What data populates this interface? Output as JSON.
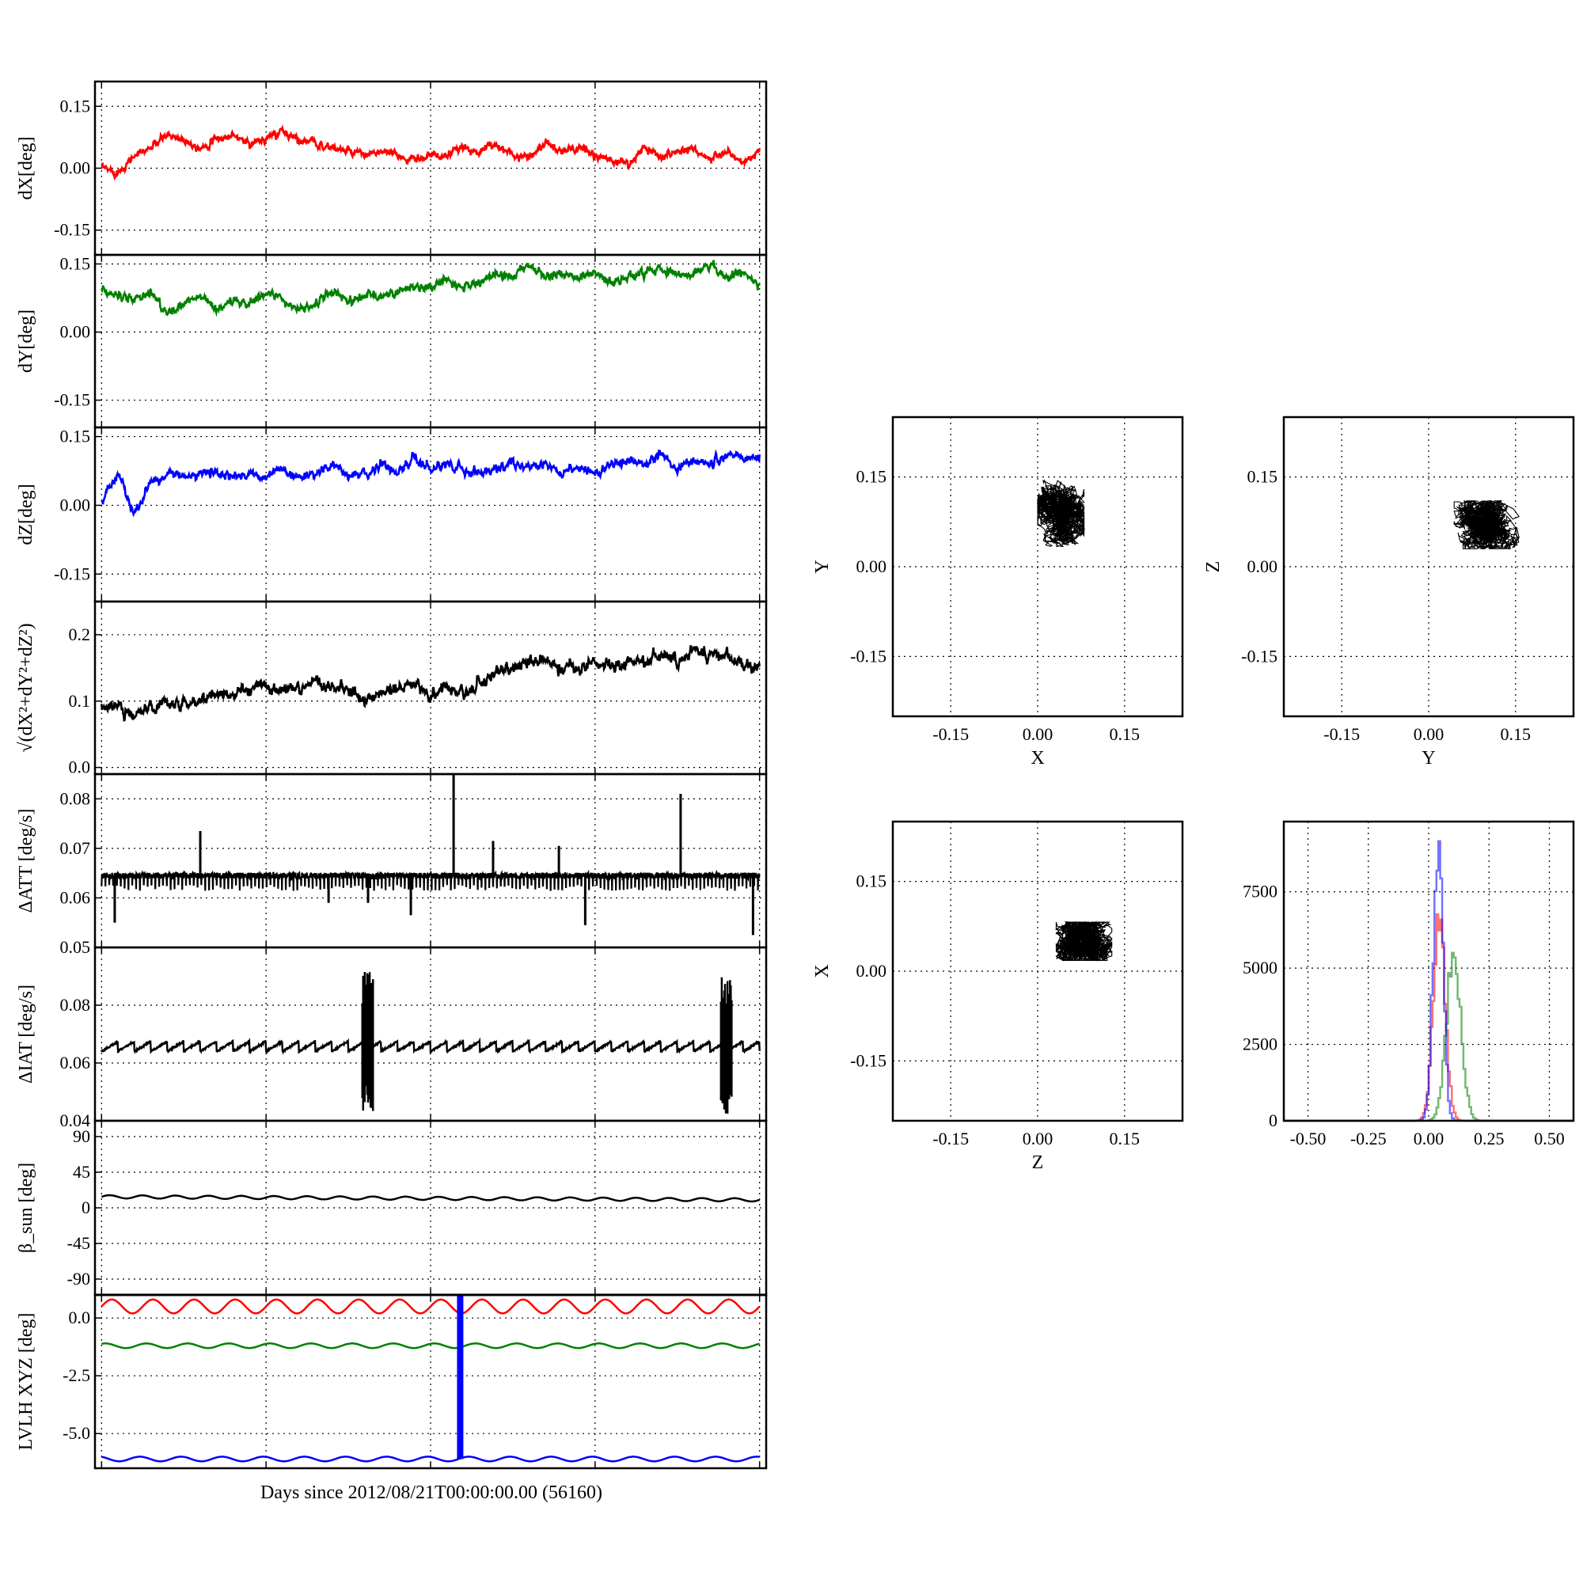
{
  "figure": {
    "xlabel": "Days since 2012/08/21T00:00:00.00 (56160)"
  },
  "chart_data": [
    {
      "id": "dX",
      "type": "line",
      "ylabel": "dX[deg]",
      "ylim": [
        -0.21,
        0.21
      ],
      "yticks": [
        "0.15",
        "0.00",
        "-0.15"
      ],
      "ytick_values": [
        0.15,
        0,
        -0.15
      ],
      "color": "#ff0000",
      "series": [
        {
          "x": [
            0,
            0.5,
            1,
            1.5,
            2,
            2.5,
            3,
            3.5,
            4,
            4.5,
            5,
            5.5,
            6,
            6.5,
            7,
            7.5,
            8,
            8.5,
            9,
            9.5,
            10,
            10.5,
            11,
            11.5,
            12,
            12.5,
            13,
            13.5,
            14,
            14.5,
            15,
            15.5,
            16,
            16.5,
            17,
            17.5,
            18,
            18.5,
            19,
            19.5,
            20
          ],
          "y": [
            0.0,
            -0.01,
            0.03,
            0.05,
            0.08,
            0.07,
            0.05,
            0.07,
            0.08,
            0.06,
            0.07,
            0.09,
            0.07,
            0.06,
            0.05,
            0.04,
            0.03,
            0.04,
            0.03,
            0.02,
            0.03,
            0.03,
            0.05,
            0.04,
            0.06,
            0.03,
            0.03,
            0.06,
            0.04,
            0.05,
            0.03,
            0.02,
            0.01,
            0.05,
            0.03,
            0.04,
            0.05,
            0.02,
            0.04,
            0.01,
            0.04
          ]
        }
      ]
    },
    {
      "id": "dY",
      "type": "line",
      "ylabel": "dY[deg]",
      "ylim": [
        -0.21,
        0.17
      ],
      "yticks": [
        "0.15",
        "0.00",
        "-0.15"
      ],
      "ytick_values": [
        0.15,
        0,
        -0.15
      ],
      "color": "#008000",
      "series": [
        {
          "x": [
            0,
            0.5,
            1,
            1.5,
            2,
            2.5,
            3,
            3.5,
            4,
            4.5,
            5,
            5.5,
            6,
            6.5,
            7,
            7.5,
            8,
            8.5,
            9,
            9.5,
            10,
            10.5,
            11,
            11.5,
            12,
            12.5,
            13,
            13.5,
            14,
            14.5,
            15,
            15.5,
            16,
            16.5,
            17,
            17.5,
            18,
            18.5,
            19,
            19.5,
            20
          ],
          "y": [
            0.09,
            0.08,
            0.07,
            0.09,
            0.04,
            0.06,
            0.08,
            0.05,
            0.07,
            0.06,
            0.09,
            0.07,
            0.05,
            0.06,
            0.09,
            0.07,
            0.08,
            0.08,
            0.09,
            0.1,
            0.1,
            0.11,
            0.1,
            0.11,
            0.13,
            0.12,
            0.15,
            0.12,
            0.13,
            0.12,
            0.13,
            0.11,
            0.12,
            0.13,
            0.14,
            0.13,
            0.13,
            0.15,
            0.12,
            0.13,
            0.1
          ]
        }
      ]
    },
    {
      "id": "dZ",
      "type": "line",
      "ylabel": "dZ[deg]",
      "ylim": [
        -0.21,
        0.17
      ],
      "yticks": [
        "0.15",
        "0.00",
        "-0.15"
      ],
      "ytick_values": [
        0.15,
        0,
        -0.15
      ],
      "color": "#0000ff",
      "series": [
        {
          "x": [
            0,
            0.5,
            1,
            1.5,
            2,
            2.5,
            3,
            3.5,
            4,
            4.5,
            5,
            5.5,
            6,
            6.5,
            7,
            7.5,
            8,
            8.5,
            9,
            9.5,
            10,
            10.5,
            11,
            11.5,
            12,
            12.5,
            13,
            13.5,
            14,
            14.5,
            15,
            15.5,
            16,
            16.5,
            17,
            17.5,
            18,
            18.5,
            19,
            19.5,
            20
          ],
          "y": [
            0.01,
            0.07,
            -0.02,
            0.05,
            0.07,
            0.06,
            0.07,
            0.07,
            0.06,
            0.07,
            0.06,
            0.08,
            0.06,
            0.07,
            0.09,
            0.06,
            0.07,
            0.09,
            0.07,
            0.1,
            0.08,
            0.09,
            0.08,
            0.07,
            0.08,
            0.09,
            0.08,
            0.09,
            0.07,
            0.08,
            0.07,
            0.09,
            0.1,
            0.09,
            0.11,
            0.08,
            0.1,
            0.09,
            0.11,
            0.1,
            0.11
          ]
        }
      ]
    },
    {
      "id": "dR",
      "type": "line",
      "ylabel": "√(dX²+dY²+dZ²)",
      "ylim": [
        -0.01,
        0.25
      ],
      "yticks": [
        "0.2",
        "0.1",
        "0.0"
      ],
      "ytick_values": [
        0.2,
        0.1,
        0.0
      ],
      "color": "#000000",
      "series": [
        {
          "x": [
            0,
            0.5,
            1,
            1.5,
            2,
            2.5,
            3,
            3.5,
            4,
            4.5,
            5,
            5.5,
            6,
            6.5,
            7,
            7.5,
            8,
            8.5,
            9,
            9.5,
            10,
            10.5,
            11,
            11.5,
            12,
            12.5,
            13,
            13.5,
            14,
            14.5,
            15,
            15.5,
            16,
            16.5,
            17,
            17.5,
            18,
            18.5,
            19,
            19.5,
            20
          ],
          "y": [
            0.09,
            0.09,
            0.08,
            0.09,
            0.1,
            0.1,
            0.1,
            0.11,
            0.11,
            0.12,
            0.12,
            0.12,
            0.12,
            0.13,
            0.12,
            0.12,
            0.1,
            0.11,
            0.12,
            0.13,
            0.11,
            0.12,
            0.11,
            0.13,
            0.14,
            0.15,
            0.16,
            0.16,
            0.15,
            0.15,
            0.16,
            0.15,
            0.16,
            0.16,
            0.17,
            0.16,
            0.18,
            0.17,
            0.17,
            0.15,
            0.15
          ]
        }
      ]
    },
    {
      "id": "dATT",
      "type": "line",
      "ylabel": "ΔATT [deg/s]",
      "ylim": [
        0.05,
        0.085
      ],
      "yticks": [
        "0.08",
        "0.07",
        "0.06",
        "0.05"
      ],
      "ytick_values": [
        0.08,
        0.07,
        0.06,
        0.05
      ],
      "color": "#000000",
      "baseline": 0.0645,
      "spikes": [
        {
          "x": 0.4,
          "y": 0.055
        },
        {
          "x": 3.0,
          "y": 0.0735
        },
        {
          "x": 6.9,
          "y": 0.059
        },
        {
          "x": 8.1,
          "y": 0.059
        },
        {
          "x": 9.4,
          "y": 0.0565
        },
        {
          "x": 10.7,
          "y": 0.085
        },
        {
          "x": 11.9,
          "y": 0.0715
        },
        {
          "x": 13.9,
          "y": 0.0705
        },
        {
          "x": 14.7,
          "y": 0.0545
        },
        {
          "x": 17.6,
          "y": 0.081
        },
        {
          "x": 19.8,
          "y": 0.0525
        }
      ]
    },
    {
      "id": "dIAT",
      "type": "line",
      "ylabel": "ΔIAT [deg/s]",
      "ylim": [
        0.04,
        0.1
      ],
      "yticks": [
        "0.08",
        "0.06",
        "0.04"
      ],
      "ytick_values": [
        0.08,
        0.06,
        0.04
      ],
      "color": "#000000",
      "baseline": 0.064,
      "bursts": [
        {
          "x": 8.1,
          "ymin": 0.043,
          "ymax": 0.092
        },
        {
          "x": 19.0,
          "ymin": 0.042,
          "ymax": 0.091
        }
      ]
    },
    {
      "id": "beta",
      "type": "line",
      "ylabel": "β_sun [deg]",
      "ylim": [
        -110,
        110
      ],
      "yticks": [
        "90",
        "45",
        "0",
        "-45",
        "-90"
      ],
      "ytick_values": [
        90,
        45,
        0,
        -45,
        -90
      ],
      "color": "#000000",
      "series": [
        {
          "x": [
            0,
            5,
            10,
            15,
            20
          ],
          "y": [
            14,
            13,
            12,
            11,
            10
          ]
        }
      ]
    },
    {
      "id": "lvlh",
      "type": "line",
      "ylabel": "LVLH XYZ [deg]",
      "ylim": [
        -6.5,
        1.0
      ],
      "yticks": [
        "0.0",
        "-2.5",
        "-5.0"
      ],
      "ytick_values": [
        0.0,
        -2.5,
        -5.0
      ],
      "series": [
        {
          "color": "#ff0000",
          "mean": 0.5,
          "amp": 0.3
        },
        {
          "color": "#008000",
          "mean": -1.2,
          "amp": 0.1
        },
        {
          "color": "#0000ff",
          "mean": -6.1,
          "amp": 0.1
        }
      ],
      "marker": {
        "x": 10.9,
        "color": "#0000ff"
      }
    },
    {
      "id": "scatterXY",
      "type": "scatter",
      "xlabel": "X",
      "ylabel": "Y",
      "xlim": [
        -0.25,
        0.25
      ],
      "ylim": [
        -0.25,
        0.25
      ],
      "ticks": [
        "-0.15",
        "0.00",
        "0.15"
      ],
      "tick_values": [
        -0.15,
        0,
        0.15
      ],
      "center": [
        0.04,
        0.09
      ],
      "spread": [
        0.025,
        0.035
      ]
    },
    {
      "id": "scatterYZ",
      "type": "scatter",
      "xlabel": "Y",
      "ylabel": "Z",
      "xlim": [
        -0.25,
        0.25
      ],
      "ylim": [
        -0.25,
        0.25
      ],
      "ticks": [
        "-0.15",
        "0.00",
        "0.15"
      ],
      "tick_values": [
        -0.15,
        0,
        0.15
      ],
      "center": [
        0.1,
        0.07
      ],
      "spread": [
        0.035,
        0.025
      ]
    },
    {
      "id": "scatterZX",
      "type": "scatter",
      "xlabel": "Z",
      "ylabel": "X",
      "xlim": [
        -0.25,
        0.25
      ],
      "ylim": [
        -0.25,
        0.25
      ],
      "ticks": [
        "-0.15",
        "0.00",
        "0.15"
      ],
      "tick_values": [
        -0.15,
        0,
        0.15
      ],
      "center": [
        0.08,
        0.05
      ],
      "spread": [
        0.03,
        0.02
      ]
    },
    {
      "id": "hist",
      "type": "histogram",
      "xlim": [
        -0.6,
        0.6
      ],
      "ylim": [
        0,
        9800
      ],
      "xticks": [
        "-0.50",
        "-0.25",
        "0.00",
        "0.25",
        "0.50"
      ],
      "xtick_values": [
        -0.5,
        -0.25,
        0,
        0.25,
        0.5
      ],
      "yticks": [
        "7500",
        "5000",
        "2500",
        "0"
      ],
      "ytick_values": [
        7500,
        5000,
        2500,
        0
      ],
      "series": [
        {
          "color": "#ff0000",
          "mu": 0.04,
          "sd": 0.025,
          "peak": 6500
        },
        {
          "color": "#008000",
          "mu": 0.1,
          "sd": 0.03,
          "peak": 5400
        },
        {
          "color": "#0000ff",
          "mu": 0.035,
          "sd": 0.02,
          "peak": 9200
        }
      ]
    }
  ]
}
